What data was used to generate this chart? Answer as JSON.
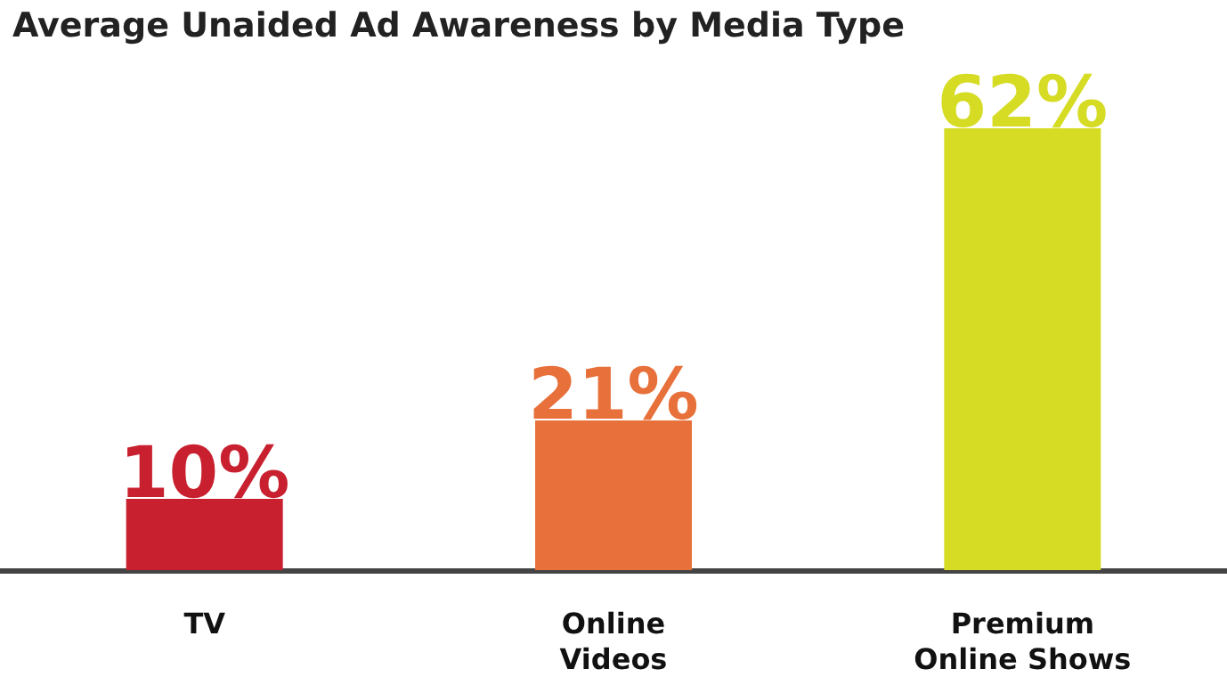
{
  "chart_data": {
    "type": "bar",
    "title": "Average Unaided Ad Awareness by Media Type",
    "categories": [
      "TV",
      "Online\nVideos",
      "Premium\nOnline Shows"
    ],
    "values": [
      10,
      21,
      62
    ],
    "colors": [
      "#c8202f",
      "#e8703a",
      "#d6dc24"
    ],
    "value_labels": [
      "10%",
      "21%",
      "62%"
    ]
  }
}
